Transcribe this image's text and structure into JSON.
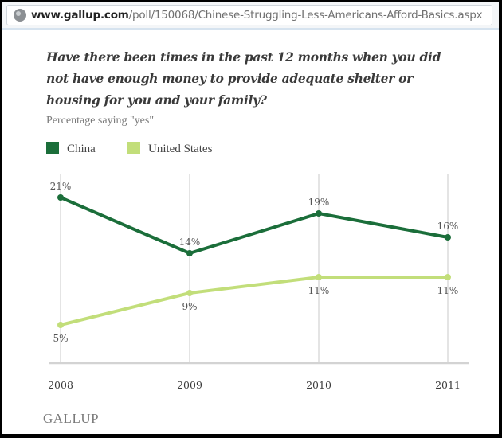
{
  "browser": {
    "url_domain": "www.gallup.com",
    "url_path": "/poll/150068/Chinese-Struggling-Less-Americans-Afford-Basics.aspx",
    "site_icon": "globe-icon"
  },
  "question": "Have there been times in the past 12 months when you did not have enough money to provide adequate shelter or housing for you and your family?",
  "brand": "GALLUP",
  "chart_data": {
    "type": "line",
    "title": "Have there been times in the past 12 months when you did not have enough money to provide adequate shelter or housing for you and your family?",
    "subtitle": "Percentage saying \"yes\"",
    "x": [
      "2008",
      "2009",
      "2010",
      "2011"
    ],
    "series": [
      {
        "name": "China",
        "color": "#1b6e3a",
        "values": [
          21,
          14,
          19,
          16
        ],
        "labels": [
          "21%",
          "14%",
          "19%",
          "16%"
        ],
        "label_position": "above"
      },
      {
        "name": "United States",
        "color": "#c2de7a",
        "values": [
          5,
          9,
          11,
          11
        ],
        "labels": [
          "5%",
          "9%",
          "11%",
          "11%"
        ],
        "label_position": "below"
      }
    ],
    "xlabel": "",
    "ylabel": "",
    "ylim": [
      0,
      25
    ],
    "grid": "vertical",
    "legend": "top-left",
    "source": "GALLUP"
  }
}
